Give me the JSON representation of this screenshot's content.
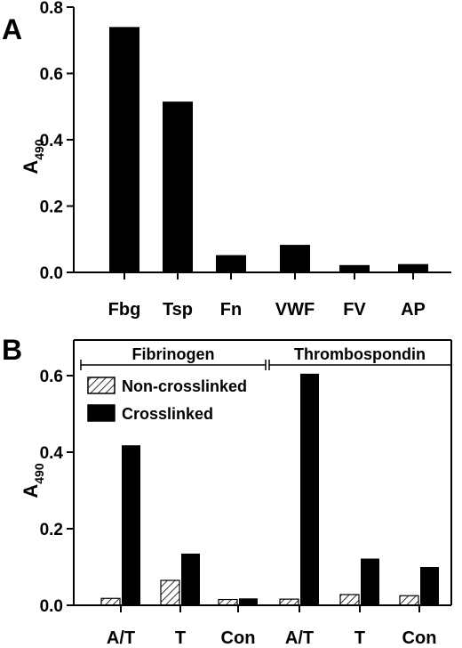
{
  "chart_data": [
    {
      "panel_label": "A",
      "type": "bar",
      "categories": [
        "Fbg",
        "Tsp",
        "Fn",
        "VWF",
        "FV",
        "AP"
      ],
      "values": [
        0.74,
        0.515,
        0.052,
        0.083,
        0.022,
        0.025
      ],
      "ylabel": "A",
      "ylabel_sub": "490",
      "ylim": [
        0,
        0.8
      ],
      "yticks": [
        "0.0",
        "0.2",
        "0.4",
        "0.6",
        "0.8"
      ],
      "bar_color": "#000000"
    },
    {
      "panel_label": "B",
      "type": "bar",
      "categories": [
        "A/T",
        "T",
        "Con",
        "A/T",
        "T",
        "Con"
      ],
      "groups": [
        {
          "label": "Fibrinogen",
          "categories": [
            "A/T",
            "T",
            "Con"
          ]
        },
        {
          "label": "Thrombospondin",
          "categories": [
            "A/T",
            "T",
            "Con"
          ]
        }
      ],
      "series": [
        {
          "name": "Non-crosslinked",
          "values": [
            0.018,
            0.065,
            0.015,
            0.016,
            0.028,
            0.025
          ],
          "fill": "hatched"
        },
        {
          "name": "Crosslinked",
          "values": [
            0.418,
            0.135,
            0.018,
            0.605,
            0.122,
            0.1
          ],
          "fill": "#000000"
        }
      ],
      "ylabel": "A",
      "ylabel_sub": "490",
      "ylim": [
        0,
        0.65
      ],
      "yticks": [
        "0.0",
        "0.2",
        "0.4",
        "0.6"
      ],
      "legend": "top-left"
    }
  ]
}
